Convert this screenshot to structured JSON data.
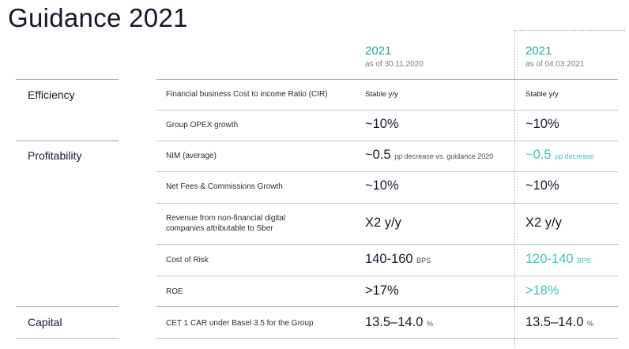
{
  "title": "Guidance 2021",
  "columns": [
    {
      "year": "2021",
      "as_of": "as of 30.11.2020"
    },
    {
      "year": "2021",
      "as_of": "as of 04.03.2021"
    }
  ],
  "categories": {
    "efficiency": "Efficiency",
    "profitability": "Profitability",
    "capital": "Capital"
  },
  "rows": [
    {
      "metric": "Financial business Cost to income Ratio (CIR)",
      "v1": "Stable y/y",
      "v2": "Stable y/y"
    },
    {
      "metric": "Group OPEX growth",
      "v1": "~10%",
      "v2": "~10%"
    },
    {
      "metric": "NIM (average)",
      "v1": "~0.5",
      "v1_unit": "pp decrease vs. guidance 2020",
      "v2": "~0.5",
      "v2_unit": "pp decrease"
    },
    {
      "metric": "Net Fees & Commissions Growth",
      "v1": "~10%",
      "v2": "~10%"
    },
    {
      "metric": "Revenue from non-financial digital companies attributable to Sber",
      "v1": "X2 y/y",
      "v2": "X2 y/y"
    },
    {
      "metric": "Cost of Risk",
      "v1": "140-160",
      "v1_unit": "BPS",
      "v2": "120-140",
      "v2_unit": "BPS"
    },
    {
      "metric": "ROE",
      "v1": ">17%",
      "v2": ">18%"
    },
    {
      "metric": "CET 1 CAR under Basel 3.5 for the Group",
      "v1": "13.5–14.0",
      "v1_unit": "%",
      "v2": "13.5–14.0",
      "v2_unit": "%"
    }
  ],
  "colors": {
    "accent_teal": "#3ec6b4",
    "year_teal": "#21a89c",
    "text_dark": "#17172b"
  }
}
